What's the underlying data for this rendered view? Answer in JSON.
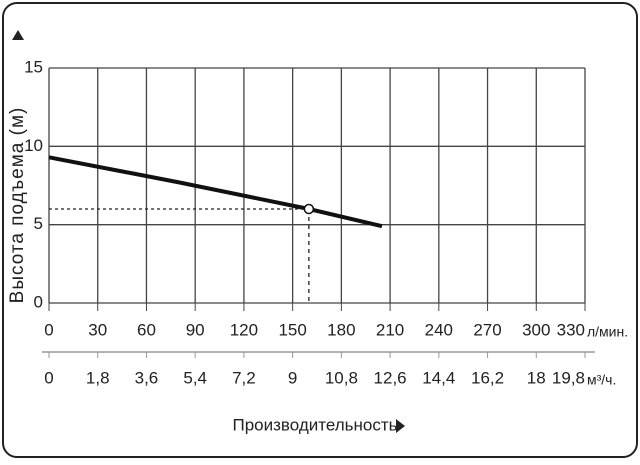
{
  "chart_data": {
    "type": "line",
    "y_label": "Высота подъема (м)",
    "x_label": "Производительность",
    "x_unit": "л/мин.",
    "x2_unit": "м³/ч.",
    "xlim": [
      0,
      330
    ],
    "xticks": [
      0,
      30,
      60,
      90,
      120,
      150,
      180,
      210,
      240,
      270,
      300,
      330
    ],
    "x2lim": [
      0,
      19.8
    ],
    "x2ticks": [
      0,
      {
        "value": 1.8,
        "label": "1,8"
      },
      {
        "value": 3.6,
        "label": "3,6"
      },
      {
        "value": 5.4,
        "label": "5,4"
      },
      {
        "value": 7.2,
        "label": "7,2"
      },
      9,
      {
        "value": 10.8,
        "label": "10,8"
      },
      {
        "value": 12.6,
        "label": "12,6"
      },
      {
        "value": 14.4,
        "label": "14,4"
      },
      {
        "value": 16.2,
        "label": "16,2"
      },
      18,
      {
        "value": 19.8,
        "label": "19,8"
      }
    ],
    "ylim": [
      0,
      15
    ],
    "yticks": [
      0,
      5,
      10,
      15
    ],
    "grid": true,
    "x": [
      0,
      80,
      160,
      205
    ],
    "series": [
      {
        "color": "#111111",
        "values": [
          9.3,
          7.7,
          6.0,
          4.9
        ]
      }
    ],
    "point": {
      "x": 160,
      "y": 6.0
    }
  }
}
